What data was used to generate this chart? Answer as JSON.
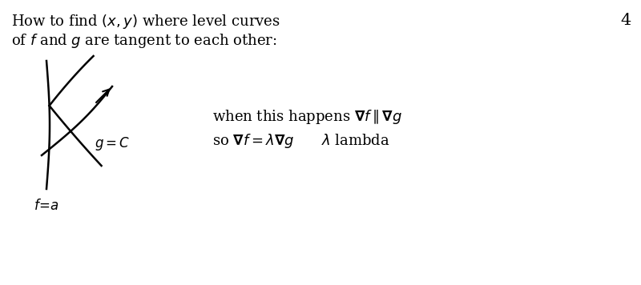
{
  "bg_color": "#ffffff",
  "page_number": "4",
  "title_line1": "How to find $(x, y)$ where level curves",
  "title_line2": "of $f$ and $g$ are tangent to each other:",
  "label_g_c": "$g = C$",
  "label_f_a": "$f\\!=\\!a$",
  "line1_text": "when this happens $\\mathbf{\\nabla} f \\parallel \\mathbf{\\nabla} g$",
  "line2_text": "so $\\mathbf{\\nabla} f = \\lambda \\mathbf{\\nabla} g \\qquad \\lambda$ lambda",
  "figsize": [
    8.0,
    3.56
  ],
  "dpi": 100
}
